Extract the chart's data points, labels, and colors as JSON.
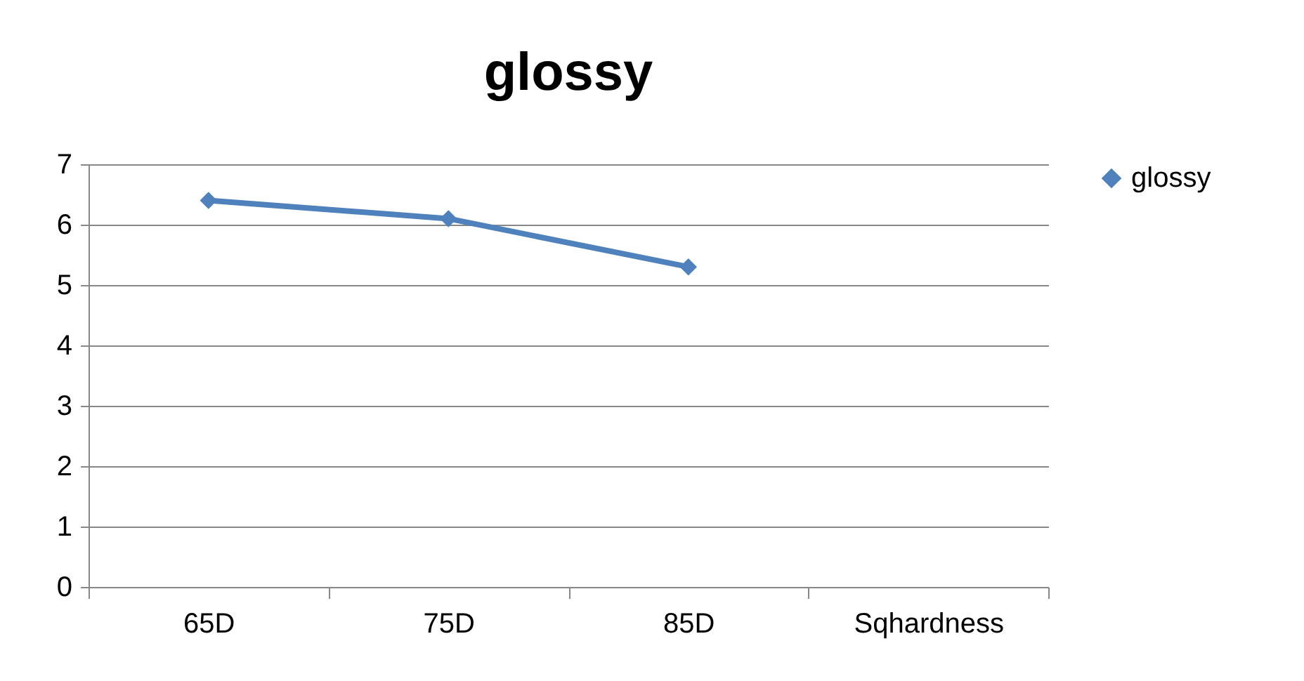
{
  "chart_data": {
    "type": "line",
    "title": "glossy",
    "categories": [
      "65D",
      "75D",
      "85D",
      "Sqhardness"
    ],
    "series": [
      {
        "name": "glossy",
        "color": "#4f81bd",
        "values": [
          6.4,
          6.1,
          5.3,
          null
        ]
      }
    ],
    "ylim": [
      0,
      7
    ],
    "yticks": [
      0,
      1,
      2,
      3,
      4,
      5,
      6,
      7
    ],
    "grid": "y",
    "legend": "right",
    "marker": "diamond"
  }
}
